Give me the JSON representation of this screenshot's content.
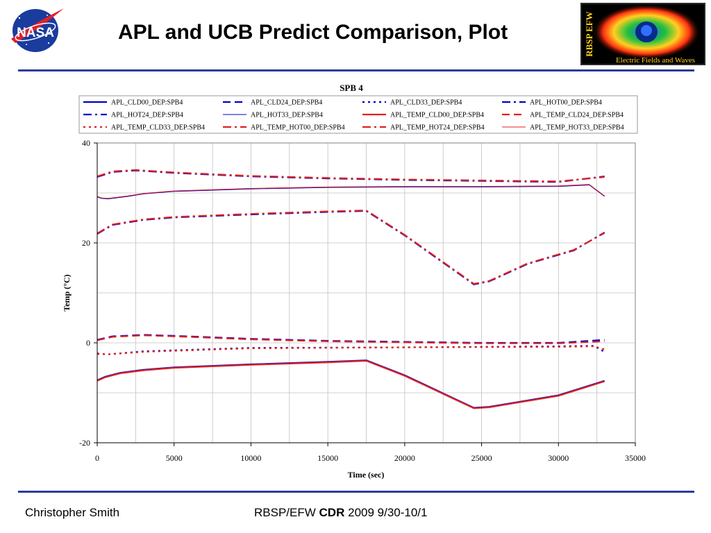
{
  "slide": {
    "title": "APL and UCB Predict Comparison, Plot",
    "footer_author": "Christopher Smith",
    "footer_project": "RBSP/EFW",
    "footer_review": "CDR",
    "footer_dates": "2009 9/30-10/1"
  },
  "logos": {
    "nasa_text": "NASA",
    "efw_vertical_text": "RBSP EFW",
    "efw_caption": "Electric Fields and Waves"
  },
  "colors": {
    "apl_blue": "#0000c8",
    "temp_red": "#e0201e",
    "grid": "#c0c0c0",
    "rule": "#2d3a9a"
  },
  "chart_data": {
    "type": "line",
    "title": "SPB 4",
    "xlabel": "Time (sec)",
    "ylabel": "Temp (°C)",
    "xlim": [
      0,
      35000
    ],
    "ylim": [
      -20,
      40
    ],
    "xticks": [
      0,
      5000,
      10000,
      15000,
      20000,
      25000,
      30000,
      35000
    ],
    "yticks": [
      -20,
      0,
      20,
      40
    ],
    "grid": true,
    "legend_position": "top",
    "series": [
      {
        "name": "APL_CLD00_DEP:SPB4",
        "color": "#0000c8",
        "style": "solid",
        "width": 2.2,
        "x": [
          0,
          500,
          1500,
          3000,
          5000,
          10000,
          15000,
          17500,
          20000,
          24500,
          25500,
          30000,
          33000
        ],
        "y": [
          -7.5,
          -6.8,
          -6,
          -5.4,
          -4.9,
          -4.3,
          -3.8,
          -3.5,
          -6.5,
          -13,
          -12.8,
          -10.5,
          -7.6
        ]
      },
      {
        "name": "APL_CLD24_DEP:SPB4",
        "color": "#0000c8",
        "style": "dash",
        "width": 2.2,
        "x": [
          0,
          1000,
          3000,
          5000,
          10000,
          15000,
          20000,
          25000,
          30000,
          33000
        ],
        "y": [
          0.6,
          1.3,
          1.6,
          1.4,
          0.8,
          0.4,
          0.2,
          0.0,
          0.0,
          0.6
        ]
      },
      {
        "name": "APL_CLD33_DEP:SPB4",
        "color": "#0000c8",
        "style": "dot",
        "width": 2.2,
        "x": [
          0,
          700,
          3000,
          10000,
          20000,
          30000,
          32300,
          33000
        ],
        "y": [
          -2.2,
          -2.3,
          -1.7,
          -1.0,
          -0.9,
          -0.7,
          -0.6,
          -1.8
        ]
      },
      {
        "name": "APL_HOT00_DEP:SPB4",
        "color": "#0000c8",
        "style": "dashdot",
        "width": 2.2,
        "x": [
          0,
          1000,
          3000,
          5000,
          10000,
          15000,
          17500,
          20000,
          24500,
          25500,
          28000,
          31000,
          33000
        ],
        "y": [
          21.8,
          23.6,
          24.6,
          25.1,
          25.7,
          26.2,
          26.4,
          21.5,
          11.7,
          12.3,
          15.8,
          18.5,
          22.1
        ]
      },
      {
        "name": "APL_HOT24_DEP:SPB4",
        "color": "#0000c8",
        "style": "dashdot",
        "width": 2.2,
        "x": [
          0,
          1000,
          2500,
          5000,
          10000,
          15000,
          20000,
          25000,
          30000,
          33000
        ],
        "y": [
          33.2,
          34.2,
          34.5,
          34.0,
          33.3,
          32.9,
          32.6,
          32.4,
          32.2,
          33.3
        ]
      },
      {
        "name": "APL_HOT33_DEP:SPB4",
        "color": "#0000c8",
        "style": "solid",
        "width": 1,
        "x": [
          0,
          300,
          700,
          2000,
          3000,
          5000,
          10000,
          15000,
          20000,
          25000,
          30000,
          32000,
          33000
        ],
        "y": [
          29.2,
          28.9,
          28.8,
          29.3,
          29.8,
          30.3,
          30.8,
          31.1,
          31.2,
          31.2,
          31.3,
          31.6,
          29.3
        ]
      },
      {
        "name": "APL_TEMP_CLD00_DEP:SPB4",
        "color": "#e0201e",
        "style": "solid",
        "width": 2.2,
        "x": [
          0,
          500,
          1500,
          3000,
          5000,
          10000,
          15000,
          17500,
          20000,
          24500,
          25500,
          30000,
          33000
        ],
        "y": [
          -7.6,
          -6.9,
          -6.1,
          -5.5,
          -5.0,
          -4.4,
          -3.9,
          -3.6,
          -6.6,
          -13.1,
          -12.9,
          -10.6,
          -7.7
        ]
      },
      {
        "name": "APL_TEMP_CLD24_DEP:SPB4",
        "color": "#e0201e",
        "style": "dash",
        "width": 2.2,
        "x": [
          0,
          1000,
          3000,
          5000,
          10000,
          15000,
          20000,
          25000,
          30000,
          33000
        ],
        "y": [
          0.5,
          1.2,
          1.5,
          1.3,
          0.7,
          0.3,
          0.1,
          -0.1,
          -0.1,
          0.3
        ]
      },
      {
        "name": "APL_TEMP_CLD33_DEP:SPB4",
        "color": "#e0201e",
        "style": "dot",
        "width": 2.2,
        "x": [
          0,
          700,
          3000,
          10000,
          20000,
          30000,
          32300,
          33000
        ],
        "y": [
          -2.1,
          -2.3,
          -1.8,
          -1.1,
          -0.9,
          -0.8,
          -0.7,
          -1.3
        ]
      },
      {
        "name": "APL_TEMP_HOT00_DEP:SPB4",
        "color": "#e0201e",
        "style": "dashdot",
        "width": 2.2,
        "x": [
          0,
          1000,
          3000,
          5000,
          10000,
          15000,
          17500,
          20000,
          24500,
          25500,
          28000,
          31000,
          33000
        ],
        "y": [
          21.9,
          23.7,
          24.7,
          25.2,
          25.8,
          26.3,
          26.5,
          21.6,
          11.8,
          12.4,
          15.9,
          18.6,
          22.0
        ]
      },
      {
        "name": "APL_TEMP_HOT24_DEP:SPB4",
        "color": "#e0201e",
        "style": "dashdot",
        "width": 2.2,
        "x": [
          0,
          1000,
          2500,
          5000,
          10000,
          15000,
          20000,
          25000,
          30000,
          33000
        ],
        "y": [
          33.3,
          34.3,
          34.6,
          34.1,
          33.4,
          33.0,
          32.7,
          32.5,
          32.3,
          33.2
        ]
      },
      {
        "name": "APL_TEMP_HOT33_DEP:SPB4",
        "color": "#e0201e",
        "style": "solid",
        "width": 1,
        "x": [
          0,
          300,
          700,
          2000,
          3000,
          5000,
          10000,
          15000,
          20000,
          25000,
          30000,
          32000,
          33000
        ],
        "y": [
          29.3,
          29.0,
          28.9,
          29.4,
          29.9,
          30.4,
          30.9,
          31.2,
          31.3,
          31.3,
          31.4,
          31.7,
          29.4
        ]
      }
    ]
  }
}
